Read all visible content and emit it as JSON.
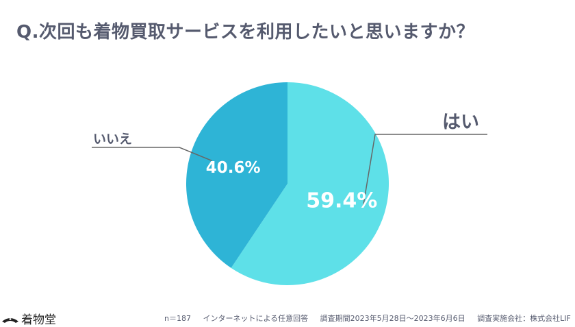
{
  "title": "Q.次回も着物買取サービスを利用したいと思いますか？",
  "chart_data": {
    "type": "pie",
    "title": "Q.次回も着物買取サービスを利用したいと思いますか？",
    "slices": [
      {
        "label": "はい",
        "value": 59.4,
        "value_label": "59.4%",
        "color": "#5ee0e8"
      },
      {
        "label": "いいえ",
        "value": 40.6,
        "value_label": "40.6%",
        "color": "#2eb4d6"
      }
    ],
    "start": "12 o'clock",
    "direction": "clockwise",
    "legend": "none"
  },
  "footer": {
    "sample": "n＝187",
    "method": "インターネットによる任意回答",
    "period": "調査期間2023年5月28日〜2023年6月6日",
    "company": "調査実施会社：株式会社LIF"
  },
  "logo": {
    "text": "着物堂",
    "icon": "kimono-logo-icon",
    "color": "#222222"
  },
  "colors": {
    "title": "#555a6e",
    "leader": "#666666",
    "pie_label": "#ffffff",
    "background": "#ffffff"
  }
}
